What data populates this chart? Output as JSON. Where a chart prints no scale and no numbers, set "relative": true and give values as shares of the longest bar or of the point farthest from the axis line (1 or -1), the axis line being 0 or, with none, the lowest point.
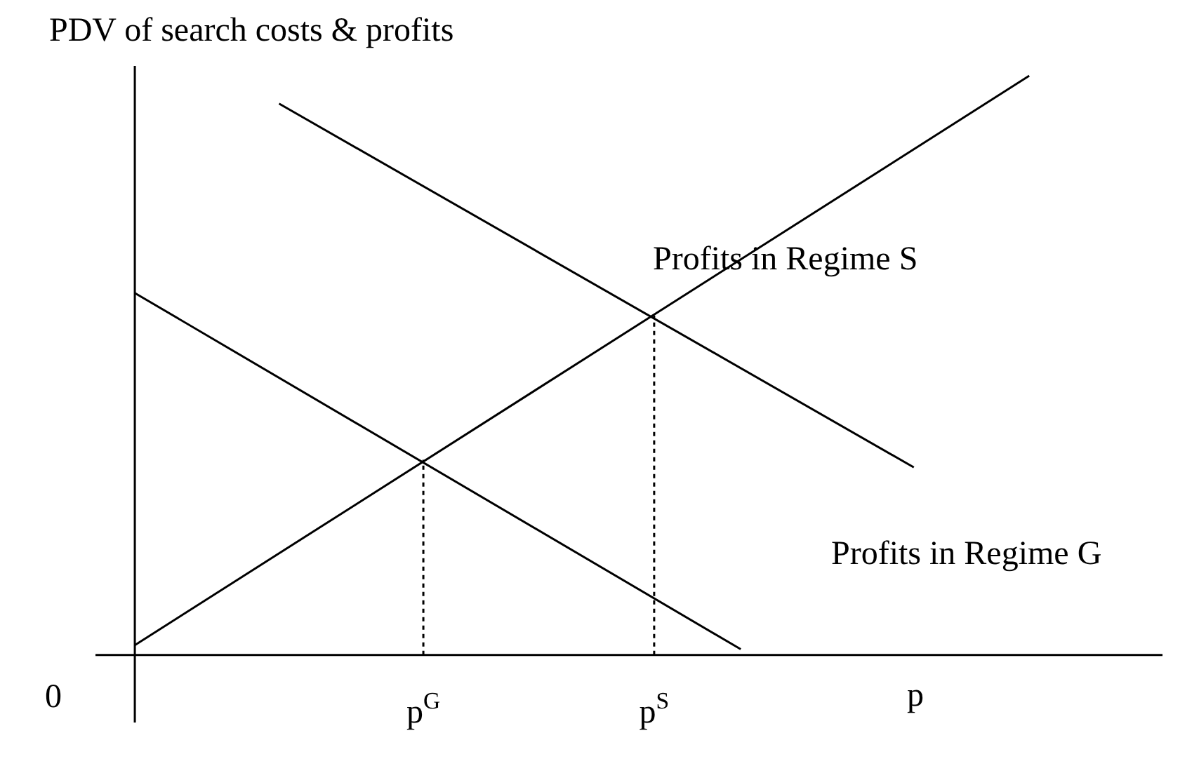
{
  "chart_data": {
    "type": "line",
    "relative": true,
    "ylabel": "PDV of search costs & profits",
    "xlabel": "p",
    "categories": [
      null,
      null,
      null,
      null,
      null,
      null,
      null,
      null,
      null,
      null,
      "p$^{G}$",
      null,
      null,
      null,
      null,
      null,
      null,
      null,
      "p$^{S}$",
      null,
      null,
      null,
      null,
      null,
      null,
      null,
      null,
      null,
      null,
      null,
      null,
      null
    ],
    "series": [
      {
        "color": "#000000",
        "line_style": "solid",
        "values": [
          0.017,
          null,
          null,
          null,
          null,
          null,
          null,
          null,
          null,
          null,
          null,
          null,
          null,
          null,
          null,
          null,
          null,
          null,
          null,
          null,
          null,
          null,
          null,
          null,
          null,
          null,
          null,
          null,
          null,
          null,
          null,
          1
        ]
      },
      {
        "color": "#000000",
        "line_style": "solid",
        "values": [
          null,
          null,
          null,
          null,
          null,
          0.952,
          null,
          null,
          null,
          null,
          null,
          null,
          null,
          null,
          null,
          null,
          null,
          null,
          null,
          null,
          null,
          null,
          null,
          null,
          null,
          null,
          null,
          0.324,
          null,
          null,
          null,
          null
        ]
      },
      {
        "color": "#000000",
        "line_style": "solid",
        "values": [
          0.625,
          null,
          null,
          null,
          null,
          null,
          null,
          null,
          null,
          null,
          null,
          null,
          null,
          null,
          null,
          null,
          null,
          null,
          null,
          null,
          null,
          0.01,
          null,
          null,
          null,
          null,
          null,
          null,
          null,
          null,
          null,
          null
        ]
      },
      {
        "color": "#000000",
        "line_style": "dotted",
        "x": [
          "p$^{G}$",
          "p$^{G}$"
        ],
        "values": [
          0,
          0.337
        ]
      },
      {
        "color": "#000000",
        "line_style": "dotted",
        "x": [
          "p$^{S}$",
          "p$^{S}$"
        ],
        "values": [
          0,
          0.586
        ]
      }
    ],
    "annotations": [
      "Profits in Regime S",
      "Profits in Regime G",
      "0"
    ]
  }
}
